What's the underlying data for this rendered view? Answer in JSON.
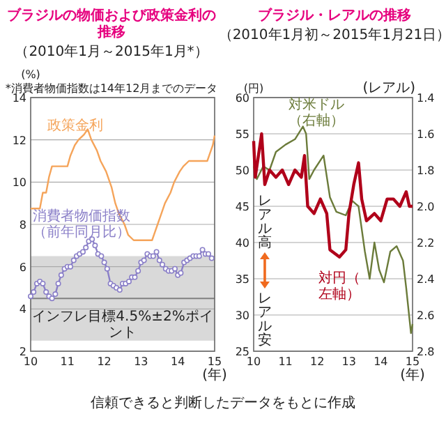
{
  "chart_data": [
    {
      "type": "line",
      "title": "ブラジルの物価および政策金利の推移",
      "subtitle": "（2010年1月～2015年1月*）",
      "annotations": [
        "*消費者物価指数は14年12月までのデータ"
      ],
      "ylabel": "(%)",
      "xlabel": "(年)",
      "xlim": [
        10,
        15
      ],
      "xticks": [
        10,
        11,
        12,
        13,
        14,
        15
      ],
      "ylim": [
        2,
        14
      ],
      "yticks": [
        2,
        4,
        6,
        8,
        10,
        12,
        14
      ],
      "grid": "y",
      "bands": [
        {
          "axis": "y",
          "from": 2.5,
          "to": 6.5,
          "label": "インフレ目標4.5%±2%ポイント",
          "color": "#d9d9d9"
        }
      ],
      "ref_lines": [
        {
          "axis": "y",
          "value": 4.5,
          "color": "#808080"
        }
      ],
      "series": [
        {
          "name": "政策金利",
          "color": "#f5a45a",
          "x": [
            10,
            10.25,
            10.33,
            10.42,
            10.5,
            10.58,
            11,
            11.08,
            11.2,
            11.3,
            11.45,
            11.55,
            11.65,
            11.8,
            11.9,
            12.05,
            12.2,
            12.3,
            12.4,
            12.55,
            12.65,
            12.8,
            13.3,
            13.35,
            13.45,
            13.55,
            13.65,
            13.8,
            13.9,
            14.05,
            14.15,
            14.3,
            14.8,
            14.85,
            14.95,
            15
          ],
          "values": [
            8.75,
            8.75,
            9.5,
            9.5,
            10.25,
            10.75,
            10.75,
            11.25,
            11.75,
            12,
            12.25,
            12.5,
            12,
            11.5,
            11,
            10.5,
            9.75,
            9,
            8.5,
            8,
            7.5,
            7.25,
            7.25,
            7.5,
            8,
            8.5,
            9,
            9.5,
            10,
            10.5,
            10.75,
            11,
            11,
            11.25,
            11.75,
            12.2
          ]
        },
        {
          "name": "消費者物価指数（前年同月比）",
          "color": "#8a7fc8",
          "marker": "circle",
          "x": [
            10,
            10.08,
            10.17,
            10.25,
            10.33,
            10.42,
            10.5,
            10.58,
            10.67,
            10.75,
            10.83,
            10.92,
            11,
            11.08,
            11.17,
            11.25,
            11.33,
            11.42,
            11.5,
            11.58,
            11.67,
            11.75,
            11.83,
            11.92,
            12,
            12.08,
            12.17,
            12.25,
            12.33,
            12.42,
            12.5,
            12.58,
            12.67,
            12.75,
            12.83,
            12.92,
            13,
            13.08,
            13.17,
            13.25,
            13.33,
            13.42,
            13.5,
            13.58,
            13.67,
            13.75,
            13.83,
            13.92,
            14,
            14.08,
            14.17,
            14.25,
            14.33,
            14.42,
            14.5,
            14.58,
            14.67,
            14.75,
            14.83,
            14.92
          ],
          "values": [
            4.6,
            4.8,
            5.2,
            5.3,
            5.2,
            4.8,
            4.6,
            4.5,
            4.7,
            5.2,
            5.6,
            5.9,
            6,
            6,
            6.3,
            6.5,
            6.6,
            6.7,
            6.9,
            7.2,
            7.3,
            7,
            6.6,
            6.5,
            6.2,
            5.9,
            5.2,
            5.1,
            5,
            4.9,
            5.2,
            5.2,
            5.3,
            5.5,
            5.5,
            5.8,
            6.2,
            6.3,
            6.6,
            6.5,
            6.5,
            6.7,
            6.3,
            6.1,
            5.9,
            5.8,
            5.8,
            5.9,
            5.6,
            5.7,
            6.2,
            6.3,
            6.4,
            6.5,
            6.5,
            6.5,
            6.8,
            6.6,
            6.6,
            6.4
          ]
        }
      ]
    },
    {
      "type": "line",
      "title": "ブラジル・レアルの推移",
      "subtitle": "（2010年1月初～2015年1月21日）",
      "annotations": [
        "レアル高",
        "レアル安",
        "信頼できると判断したデータをもとに作成"
      ],
      "ylabel": "(円)",
      "y2label": "(レアル)",
      "xlabel": "(年)",
      "xlim": [
        10,
        15
      ],
      "xticks": [
        10,
        11,
        12,
        13,
        14,
        15
      ],
      "ylim": [
        25,
        60
      ],
      "yticks": [
        25,
        30,
        35,
        40,
        45,
        50,
        55,
        60
      ],
      "y2lim": [
        2.8,
        1.4
      ],
      "y2ticks": [
        1.4,
        1.6,
        1.8,
        {
          "value": 2,
          "label": "2.0"
        },
        2.2,
        2.4,
        2.6,
        2.8
      ],
      "grid": "y",
      "series": [
        {
          "name": "対米ドル（右軸）",
          "color": "#6b7b3a",
          "axis": "y2",
          "x": [
            10,
            10.1,
            10.3,
            10.5,
            10.7,
            11,
            11.3,
            11.55,
            11.65,
            11.75,
            11.9,
            12.2,
            12.4,
            12.6,
            12.9,
            13.1,
            13.3,
            13.5,
            13.65,
            13.8,
            13.95,
            14.1,
            14.3,
            14.5,
            14.7,
            14.8,
            14.95,
            15
          ],
          "values": [
            1.78,
            1.85,
            1.78,
            1.8,
            1.7,
            1.66,
            1.63,
            1.56,
            1.6,
            1.85,
            1.8,
            1.72,
            1.95,
            2.03,
            2.05,
            1.97,
            2,
            2.25,
            2.4,
            2.2,
            2.35,
            2.42,
            2.25,
            2.22,
            2.3,
            2.45,
            2.7,
            2.65
          ]
        },
        {
          "name": "対円（左軸）",
          "color": "#b0001a",
          "axis": "y",
          "x": [
            10,
            10.05,
            10.15,
            10.25,
            10.35,
            10.5,
            10.7,
            10.9,
            11.1,
            11.3,
            11.5,
            11.6,
            11.7,
            11.9,
            12.1,
            12.3,
            12.4,
            12.7,
            12.9,
            13,
            13.15,
            13.3,
            13.4,
            13.55,
            13.8,
            14,
            14.2,
            14.4,
            14.6,
            14.8,
            14.9,
            15
          ],
          "values": [
            54,
            49,
            52,
            55,
            48,
            50,
            49,
            50,
            48,
            50,
            49,
            52,
            45,
            44,
            46,
            44,
            39,
            38,
            39,
            44,
            48,
            51,
            46,
            43,
            44,
            43,
            46,
            46,
            45,
            47,
            45,
            45
          ]
        }
      ]
    }
  ]
}
